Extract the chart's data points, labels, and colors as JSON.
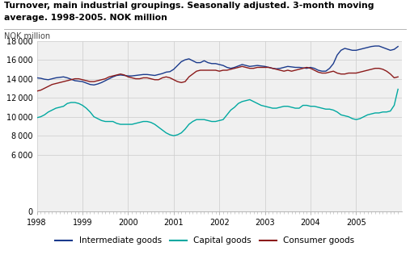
{
  "title_line1": "Turnover, main industrial groupings. Seasonally adjusted. 3-month moving",
  "title_line2": "average. 1998-2005. NOK million",
  "ylabel": "NOK million",
  "ylim": [
    0,
    18000
  ],
  "yticks": [
    0,
    6000,
    8000,
    10000,
    12000,
    14000,
    16000,
    18000
  ],
  "xlim_start": 1998.0,
  "xlim_end": 2006.0,
  "xtick_labels": [
    "1998",
    "1999",
    "2000",
    "2001",
    "2002",
    "2003",
    "2004",
    "2005"
  ],
  "legend_labels": [
    "Intermediate goods",
    "Capital goods",
    "Consumer goods"
  ],
  "line_colors": [
    "#1a3a8c",
    "#00a8a0",
    "#8b1a1a"
  ],
  "intermediate_goods": [
    14100,
    14050,
    13950,
    13900,
    14000,
    14100,
    14150,
    14200,
    14100,
    13950,
    13800,
    13750,
    13700,
    13550,
    13400,
    13350,
    13450,
    13600,
    13800,
    14000,
    14200,
    14350,
    14400,
    14350,
    14300,
    14300,
    14350,
    14400,
    14450,
    14450,
    14400,
    14350,
    14450,
    14550,
    14700,
    14750,
    15000,
    15400,
    15800,
    16000,
    16100,
    15900,
    15700,
    15700,
    15900,
    15700,
    15600,
    15600,
    15500,
    15400,
    15200,
    15100,
    15200,
    15350,
    15500,
    15400,
    15300,
    15350,
    15400,
    15350,
    15300,
    15200,
    15100,
    15050,
    15100,
    15200,
    15300,
    15250,
    15200,
    15200,
    15150,
    15100,
    15200,
    15100,
    14900,
    14800,
    14800,
    15100,
    15600,
    16500,
    17000,
    17200,
    17100,
    17000,
    17000,
    17100,
    17200,
    17300,
    17400,
    17450,
    17450,
    17300,
    17150,
    17000,
    17100,
    17400
  ],
  "capital_goods": [
    9900,
    10000,
    10200,
    10500,
    10700,
    10900,
    11000,
    11100,
    11400,
    11500,
    11500,
    11400,
    11200,
    10900,
    10500,
    10000,
    9800,
    9600,
    9500,
    9500,
    9500,
    9300,
    9200,
    9200,
    9200,
    9200,
    9300,
    9400,
    9500,
    9500,
    9400,
    9200,
    8900,
    8600,
    8300,
    8100,
    8000,
    8100,
    8300,
    8700,
    9200,
    9500,
    9700,
    9700,
    9700,
    9600,
    9500,
    9500,
    9600,
    9700,
    10200,
    10700,
    11000,
    11400,
    11600,
    11700,
    11800,
    11600,
    11400,
    11200,
    11100,
    11000,
    10900,
    10900,
    11000,
    11100,
    11100,
    11000,
    10900,
    10900,
    11200,
    11200,
    11100,
    11100,
    11000,
    10900,
    10800,
    10800,
    10700,
    10500,
    10200,
    10100,
    10000,
    9800,
    9700,
    9800,
    10000,
    10200,
    10300,
    10400,
    10400,
    10500,
    10500,
    10600,
    11200,
    12900
  ],
  "consumer_goods": [
    12700,
    12800,
    13000,
    13200,
    13400,
    13500,
    13600,
    13700,
    13800,
    13900,
    14000,
    14000,
    13900,
    13800,
    13700,
    13700,
    13800,
    13900,
    14000,
    14200,
    14300,
    14400,
    14500,
    14400,
    14200,
    14100,
    14000,
    14000,
    14100,
    14100,
    14000,
    13900,
    13900,
    14100,
    14200,
    14100,
    13900,
    13700,
    13600,
    13700,
    14200,
    14500,
    14800,
    14900,
    14900,
    14900,
    14900,
    14900,
    14800,
    14900,
    14900,
    15000,
    15100,
    15200,
    15300,
    15200,
    15100,
    15100,
    15200,
    15200,
    15200,
    15200,
    15100,
    15000,
    14900,
    14800,
    14900,
    14800,
    14900,
    15000,
    15100,
    15200,
    15100,
    14900,
    14700,
    14600,
    14600,
    14700,
    14800,
    14600,
    14500,
    14500,
    14600,
    14600,
    14600,
    14700,
    14800,
    14900,
    15000,
    15100,
    15100,
    15000,
    14800,
    14500,
    14100,
    14200
  ]
}
